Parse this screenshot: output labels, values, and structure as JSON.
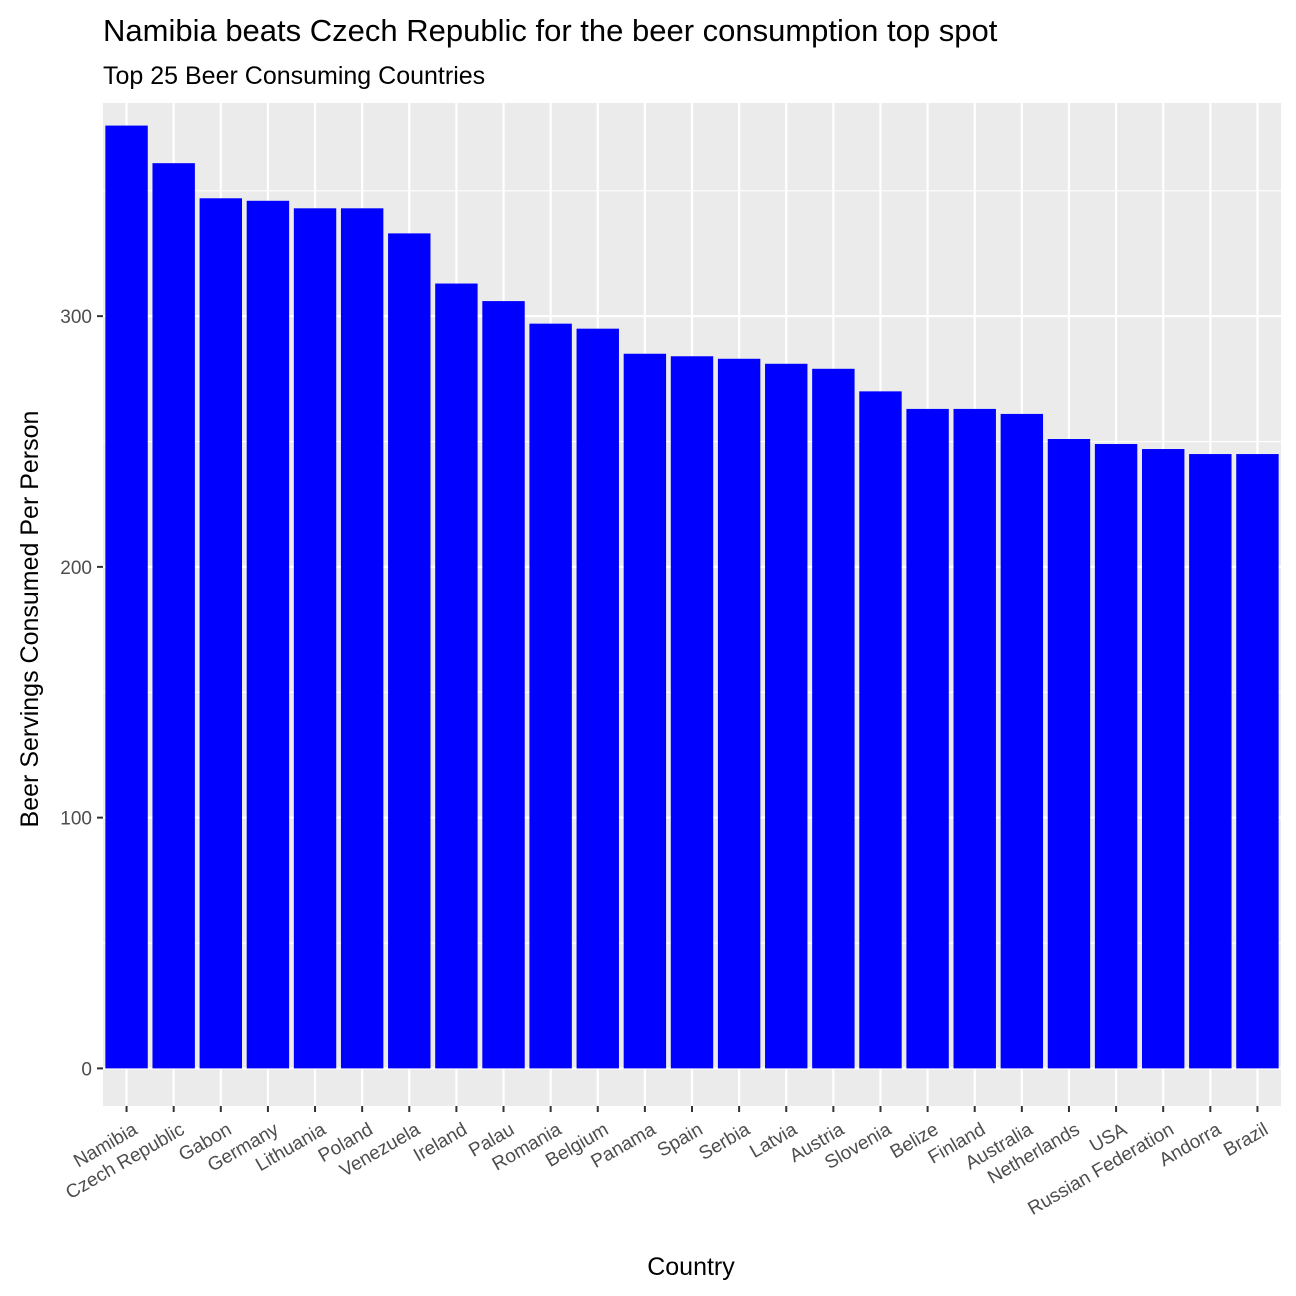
{
  "chart_data": {
    "type": "bar",
    "title": "Namibia beats Czech Republic for the beer consumption top spot",
    "subtitle": "Top 25 Beer Consuming Countries",
    "xlabel": "Country",
    "ylabel": "Beer Servings Consumed Per Person",
    "ylim": [
      -15,
      385
    ],
    "yticks": [
      0,
      100,
      200,
      300
    ],
    "grid": true,
    "bar_color": "#0000ff",
    "panel_color": "#ebebeb",
    "categories": [
      "Namibia",
      "Czech Republic",
      "Gabon",
      "Germany",
      "Lithuania",
      "Poland",
      "Venezuela",
      "Ireland",
      "Palau",
      "Romania",
      "Belgium",
      "Panama",
      "Spain",
      "Serbia",
      "Latvia",
      "Austria",
      "Slovenia",
      "Belize",
      "Finland",
      "Australia",
      "Netherlands",
      "USA",
      "Russian Federation",
      "Andorra",
      "Brazil"
    ],
    "values": [
      376,
      361,
      347,
      346,
      343,
      343,
      333,
      313,
      306,
      297,
      295,
      285,
      284,
      283,
      281,
      279,
      270,
      263,
      263,
      261,
      251,
      249,
      247,
      245,
      245
    ]
  }
}
